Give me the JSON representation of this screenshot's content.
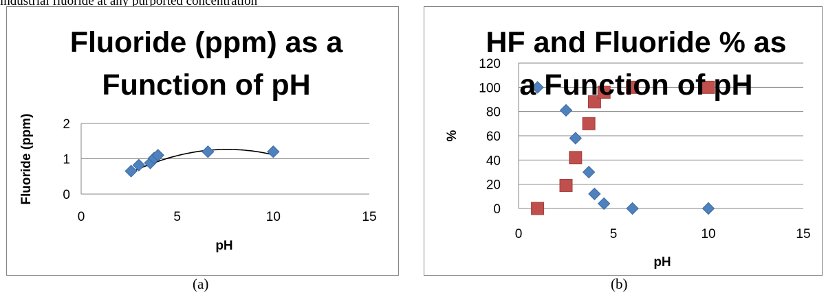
{
  "page": {
    "top_text": "industrial fluoride at any purported concentration",
    "caption_a": "(a)",
    "caption_b": "(b)"
  },
  "colors": {
    "diamond": "#4f81bd",
    "diamond_stroke": "#3a6aa6",
    "square": "#c0504d",
    "square_stroke": "#a23f3c",
    "gridline": "#868686",
    "frame": "#868686",
    "trendline": "#000000"
  },
  "chart_data": [
    {
      "type": "scatter",
      "title_lines": [
        "Fluoride (ppm) as a",
        "Function of pH"
      ],
      "xlabel": "pH",
      "ylabel": "Fluoride (ppm)",
      "xlim": [
        0,
        15
      ],
      "ylim": [
        0,
        2
      ],
      "xticks": [
        0,
        5,
        10,
        15
      ],
      "yticks": [
        0,
        1,
        2
      ],
      "grid": "horizontal",
      "series": [
        {
          "marker": "diamond",
          "points": [
            [
              2.6,
              0.65
            ],
            [
              3.0,
              0.82
            ],
            [
              3.6,
              0.88
            ],
            [
              3.8,
              1.02
            ],
            [
              4.0,
              1.1
            ],
            [
              6.6,
              1.2
            ],
            [
              10.0,
              1.2
            ]
          ]
        }
      ],
      "trendline": {
        "type": "polynomial-2",
        "x_range": [
          2.6,
          10.0
        ],
        "coeffs": [
          -0.247,
          0.398,
          -0.0262
        ]
      }
    },
    {
      "type": "scatter",
      "title_lines": [
        "HF and Fluoride % as",
        "a Function of pH"
      ],
      "xlabel": "pH",
      "ylabel": "%",
      "xlim": [
        0,
        15
      ],
      "ylim": [
        0,
        120
      ],
      "xticks": [
        0,
        5,
        10,
        15
      ],
      "yticks": [
        0,
        20,
        40,
        60,
        80,
        100,
        120
      ],
      "grid": "horizontal",
      "series": [
        {
          "marker": "diamond",
          "points": [
            [
              1.0,
              100
            ],
            [
              2.5,
              81
            ],
            [
              3.0,
              58
            ],
            [
              3.7,
              30
            ],
            [
              4.0,
              12
            ],
            [
              4.5,
              4
            ],
            [
              6.0,
              0
            ],
            [
              10.0,
              0
            ]
          ]
        },
        {
          "marker": "square",
          "points": [
            [
              1.0,
              0
            ],
            [
              2.5,
              19
            ],
            [
              3.0,
              42
            ],
            [
              3.7,
              70
            ],
            [
              4.0,
              88
            ],
            [
              4.5,
              96
            ],
            [
              6.0,
              100
            ],
            [
              10.0,
              100
            ]
          ]
        }
      ]
    }
  ]
}
